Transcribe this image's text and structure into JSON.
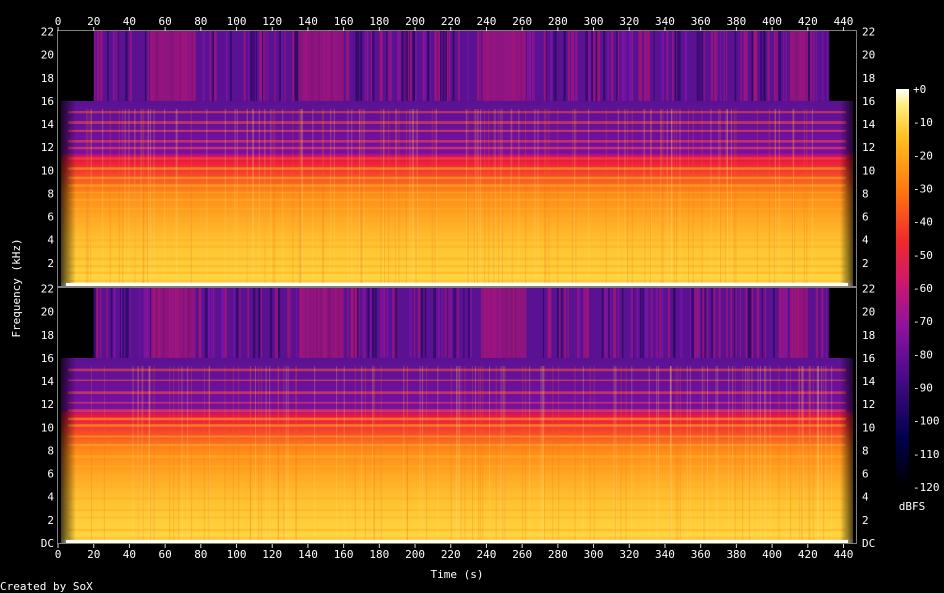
{
  "chart_data": {
    "type": "heatmap",
    "title": "",
    "xlabel": "Time (s)",
    "ylabel": "Frequency (kHz)",
    "x_ticks": [
      0,
      20,
      40,
      60,
      80,
      100,
      120,
      140,
      160,
      180,
      200,
      220,
      240,
      260,
      280,
      300,
      320,
      340,
      360,
      380,
      400,
      420,
      440
    ],
    "xlim": [
      0,
      447
    ],
    "y_ticks": [
      "DC",
      "2",
      "4",
      "6",
      "8",
      "10",
      "12",
      "14",
      "16",
      "18",
      "20",
      "22"
    ],
    "ylim_khz": [
      0,
      22.05
    ],
    "channels": 2,
    "lowpass_cutoff_khz": 16,
    "colorbar": {
      "label": "dBFS",
      "ticks": [
        "+0",
        "-10",
        "-20",
        "-30",
        "-40",
        "-50",
        "-60",
        "-70",
        "-80",
        "-90",
        "-100",
        "-110",
        "-120"
      ],
      "range": [
        -120,
        0
      ]
    },
    "colors": {
      "background": "#000000",
      "low": "#00003c",
      "purple": "#5a1292",
      "magenta": "#a0157a",
      "red": "#e81a3c",
      "orange": "#ff8a18",
      "yellow": "#ffd640",
      "white": "#fffff0"
    },
    "footer": "Created by SoX"
  }
}
